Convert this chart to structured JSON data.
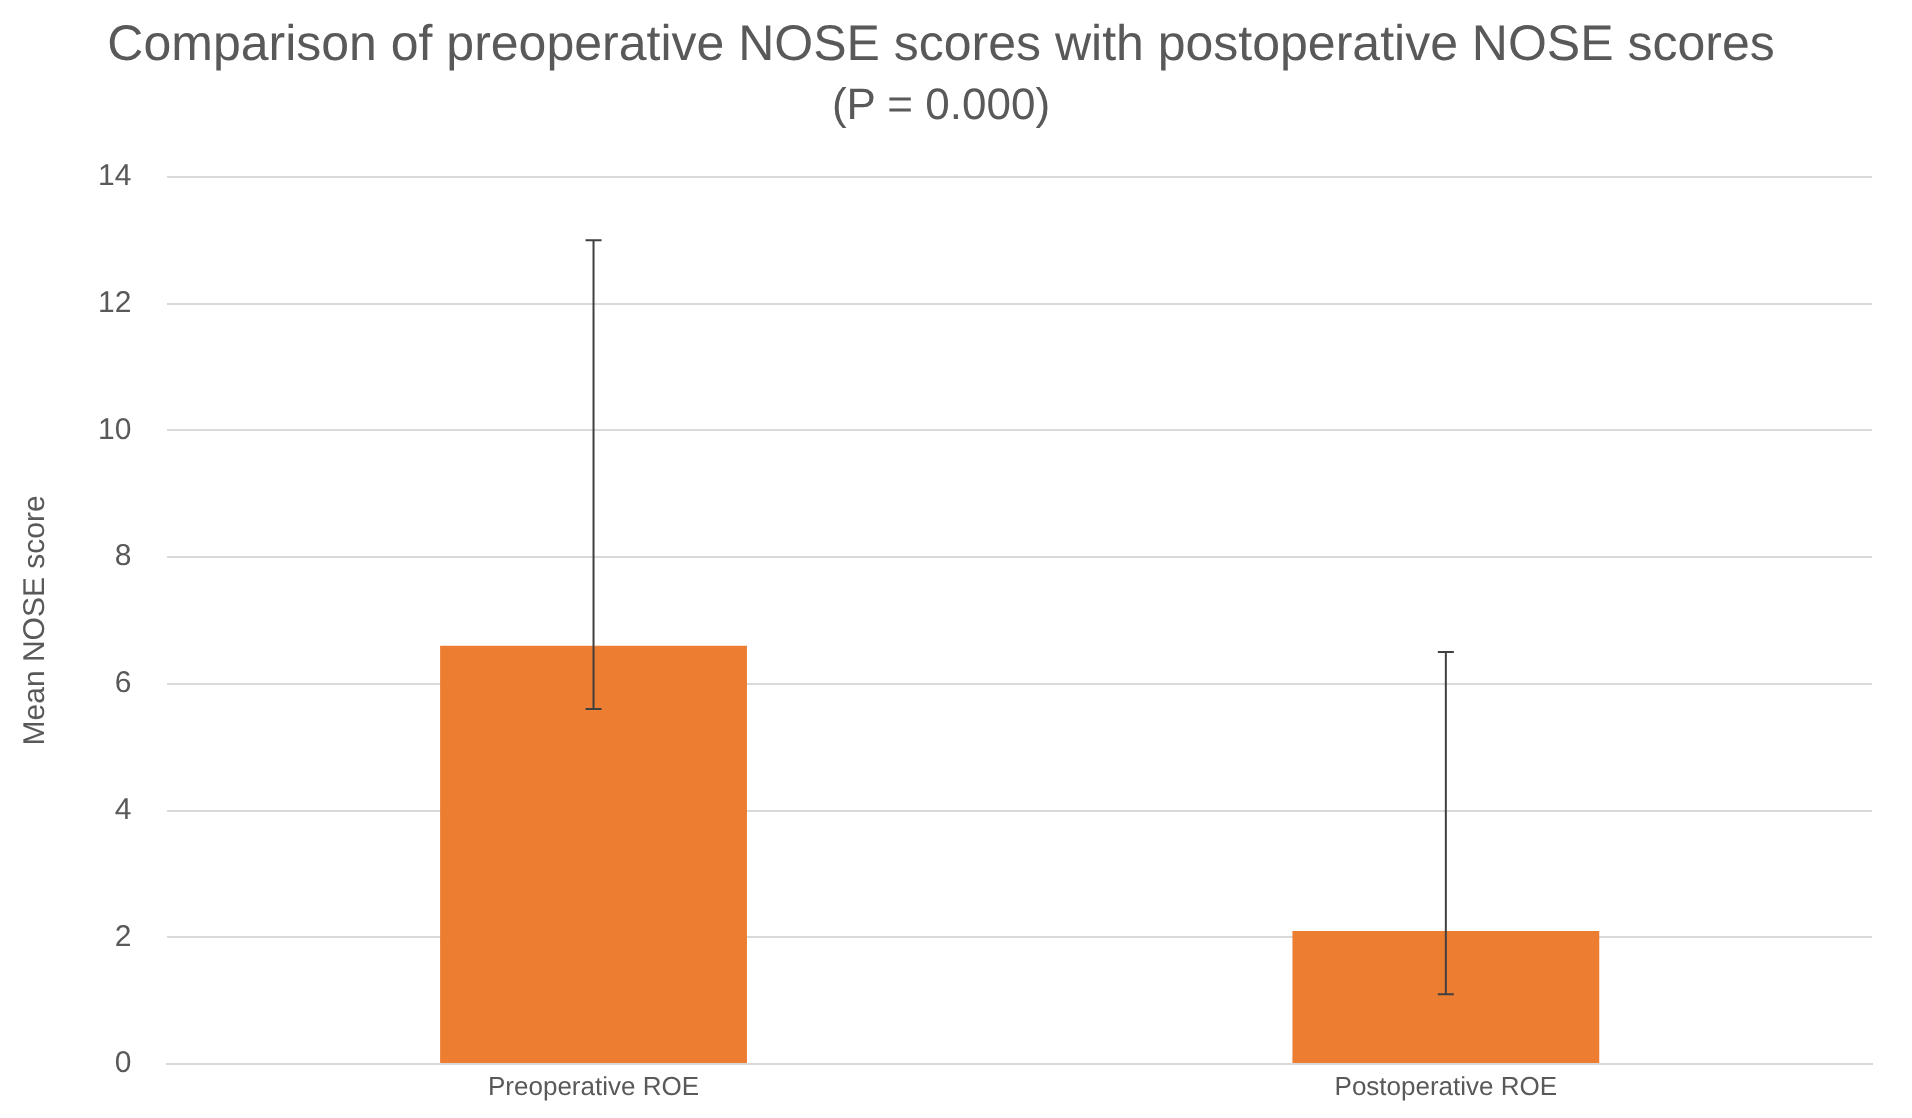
{
  "chart_data": {
    "type": "bar",
    "title": "Comparison of preoperative NOSE scores with postoperative NOSE scores",
    "subtitle": "(P = 0.000)",
    "ylabel": "Mean NOSE score",
    "categories": [
      "Preoperative ROE",
      "Postoperative ROE"
    ],
    "values": [
      6.6,
      2.1
    ],
    "color": "#ed7d31",
    "errors": [
      [
        5.6,
        13.0
      ],
      [
        1.1,
        6.5
      ]
    ],
    "ylim": [
      0,
      14
    ],
    "yticks": [
      0,
      2,
      4,
      6,
      8,
      10,
      12,
      14
    ],
    "grid": "y"
  }
}
